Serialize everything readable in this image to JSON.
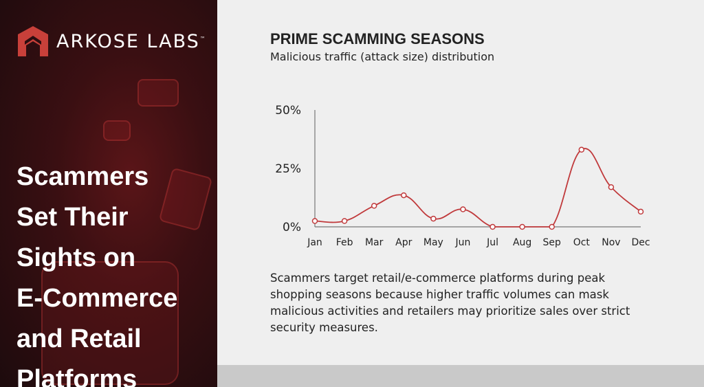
{
  "brand": {
    "name": "ARKOSE LABS",
    "trademark": "™",
    "accent": "#c8403a"
  },
  "headline": [
    "Scammers",
    "Set Their",
    "Sights on",
    "E-Commerce",
    "and Retail",
    "Platforms"
  ],
  "chart_data": {
    "type": "line",
    "title": "PRIME SCAMMING SEASONS",
    "subtitle": "Malicious traffic (attack size) distribution",
    "categories": [
      "Jan",
      "Feb",
      "Mar",
      "Apr",
      "May",
      "Jun",
      "Jul",
      "Aug",
      "Sep",
      "Oct",
      "Nov",
      "Dec"
    ],
    "values": [
      2.5,
      2.5,
      9,
      13.5,
      3.5,
      7.5,
      0,
      0,
      0,
      33,
      17,
      6.5
    ],
    "yticks": [
      "0%",
      "25%",
      "50%"
    ],
    "ylim": [
      0,
      50
    ],
    "grid": false,
    "line_color": "#c0393b"
  },
  "body": "Scammers target retail/e-commerce platforms during peak shopping seasons because higher traffic volumes can mask malicious activities and retailers may prioritize sales over strict security measures."
}
